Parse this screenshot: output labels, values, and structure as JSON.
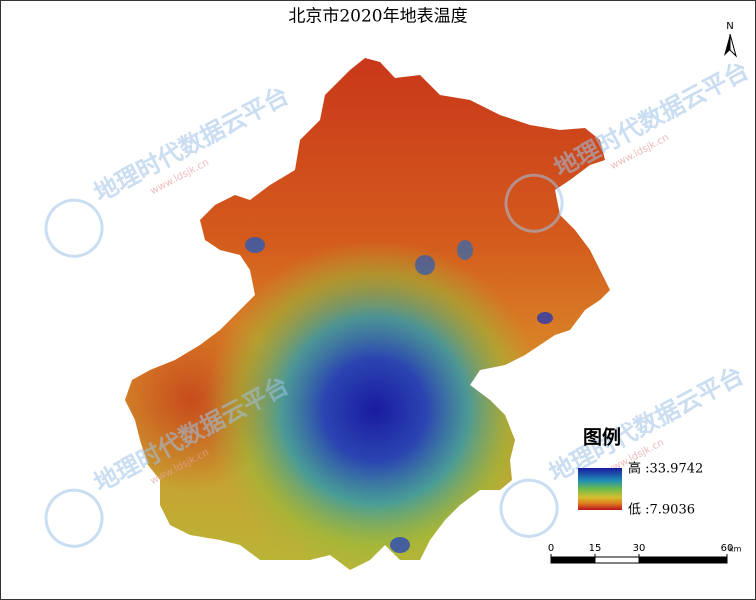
{
  "title": "北京市2020年地表温度",
  "north": "N",
  "legend": {
    "title": "图例",
    "high": "高 :33.9742",
    "low": "低 :7.9036"
  },
  "scale_bar": {
    "ticks": [
      0,
      15,
      30,
      60
    ],
    "unit": "km"
  },
  "watermark": {
    "name": "地理时代数据云平台",
    "url": "www.ldsjk.cn"
  }
}
